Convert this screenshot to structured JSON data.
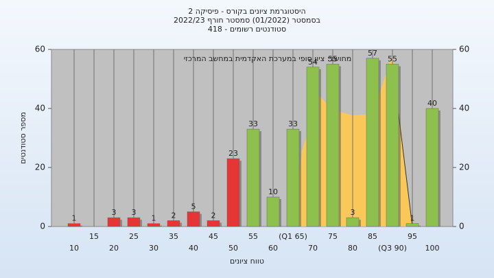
{
  "chart_data": {
    "type": "bar",
    "title": "היסטוגרמת ציונים בקורס - פיסיקה 2",
    "subtitle": "בסמסטר  (01/2022)  סמסטר חורף  2022/23",
    "subtitle2": "418 - סטודנטים רשומים",
    "annotation": "מחושב: ציון סופי במערכת האקדמית במחשב המרכזי",
    "x_label": "טווח ציונים",
    "y_label": "מספר סטודנטים",
    "categories": [
      "10",
      "15",
      "20",
      "25",
      "30",
      "35",
      "40",
      "45",
      "50",
      "55",
      "60",
      "(Q1 65)",
      "70",
      "75",
      "80",
      "85",
      "(Q3 90)",
      "95",
      "100"
    ],
    "values": [
      1,
      null,
      3,
      3,
      1,
      2,
      5,
      2,
      23,
      33,
      10,
      33,
      54,
      55,
      3,
      57,
      55,
      1,
      40
    ],
    "colors": [
      "#e53535",
      "#e53535",
      "#e53535",
      "#e53535",
      "#e53535",
      "#e53535",
      "#e53535",
      "#e53535",
      "#e53535",
      "#8dc04c",
      "#8dc04c",
      "#8dc04c",
      "#8dc04c",
      "#8dc04c",
      "#8dc04c",
      "#8dc04c",
      "#8dc04c",
      "#8dc04c",
      "#8dc04c"
    ],
    "ylim": [
      0,
      60
    ],
    "yticks": [
      0,
      20,
      40,
      60
    ],
    "y2lim": [
      0,
      60
    ],
    "y2ticks": [
      0,
      20,
      40,
      60
    ]
  }
}
